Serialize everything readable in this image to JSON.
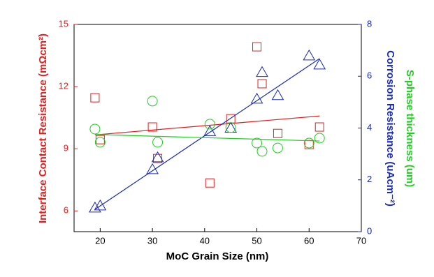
{
  "chart_data": {
    "type": "scatter",
    "x_label": "MoC Grain Size (nm)",
    "y_label": "Interface Contact Resistance (mΩcm²)",
    "y2_label": "Corrosion Resistance (uAcm⁻²)",
    "y3_label": "S-phase thickness (um)",
    "xlim": [
      15,
      70
    ],
    "xticks": [
      20,
      30,
      40,
      50,
      60,
      70
    ],
    "ylim": [
      5,
      15
    ],
    "yticks": [
      6,
      9,
      12,
      15
    ],
    "y2lim": [
      0,
      8
    ],
    "y2ticks": [
      0,
      2,
      4,
      6,
      8
    ],
    "series": [
      {
        "marker": "square",
        "color": "#e02020",
        "x": [
          19,
          20,
          30,
          31,
          41,
          45,
          50,
          51,
          54,
          60,
          62
        ],
        "values": [
          11.46,
          9.44,
          10.05,
          8.53,
          7.35,
          10.45,
          13.92,
          12.14,
          9.74,
          9.2,
          10.05
        ]
      },
      {
        "marker": "line",
        "color": "#e02020",
        "x": [
          19,
          62
        ],
        "values": [
          9.67,
          10.58
        ]
      },
      {
        "marker": "triangle",
        "axis": "y2",
        "color": "#1a2ab8",
        "x": [
          19,
          20,
          30,
          31,
          41,
          45,
          50,
          51,
          54,
          60,
          62
        ],
        "values": [
          0.92,
          1.0,
          2.4,
          2.86,
          3.87,
          4.0,
          5.12,
          6.15,
          5.26,
          6.79,
          6.44
        ]
      },
      {
        "marker": "line",
        "axis": "y2",
        "color": "#1a2ab8",
        "x": [
          19,
          62
        ],
        "values": [
          0.86,
          6.68
        ]
      },
      {
        "marker": "circle",
        "axis": "y2",
        "color": "#22cc22",
        "x": [
          19,
          20,
          30,
          31,
          41,
          45,
          50,
          51,
          54,
          60,
          62
        ],
        "values": [
          3.96,
          3.45,
          5.04,
          3.45,
          4.15,
          4.02,
          3.42,
          3.1,
          3.23,
          3.42,
          3.61
        ]
      },
      {
        "marker": "line",
        "axis": "y2",
        "color": "#22cc22",
        "x": [
          19,
          62
        ],
        "values": [
          3.75,
          3.5
        ]
      }
    ]
  }
}
